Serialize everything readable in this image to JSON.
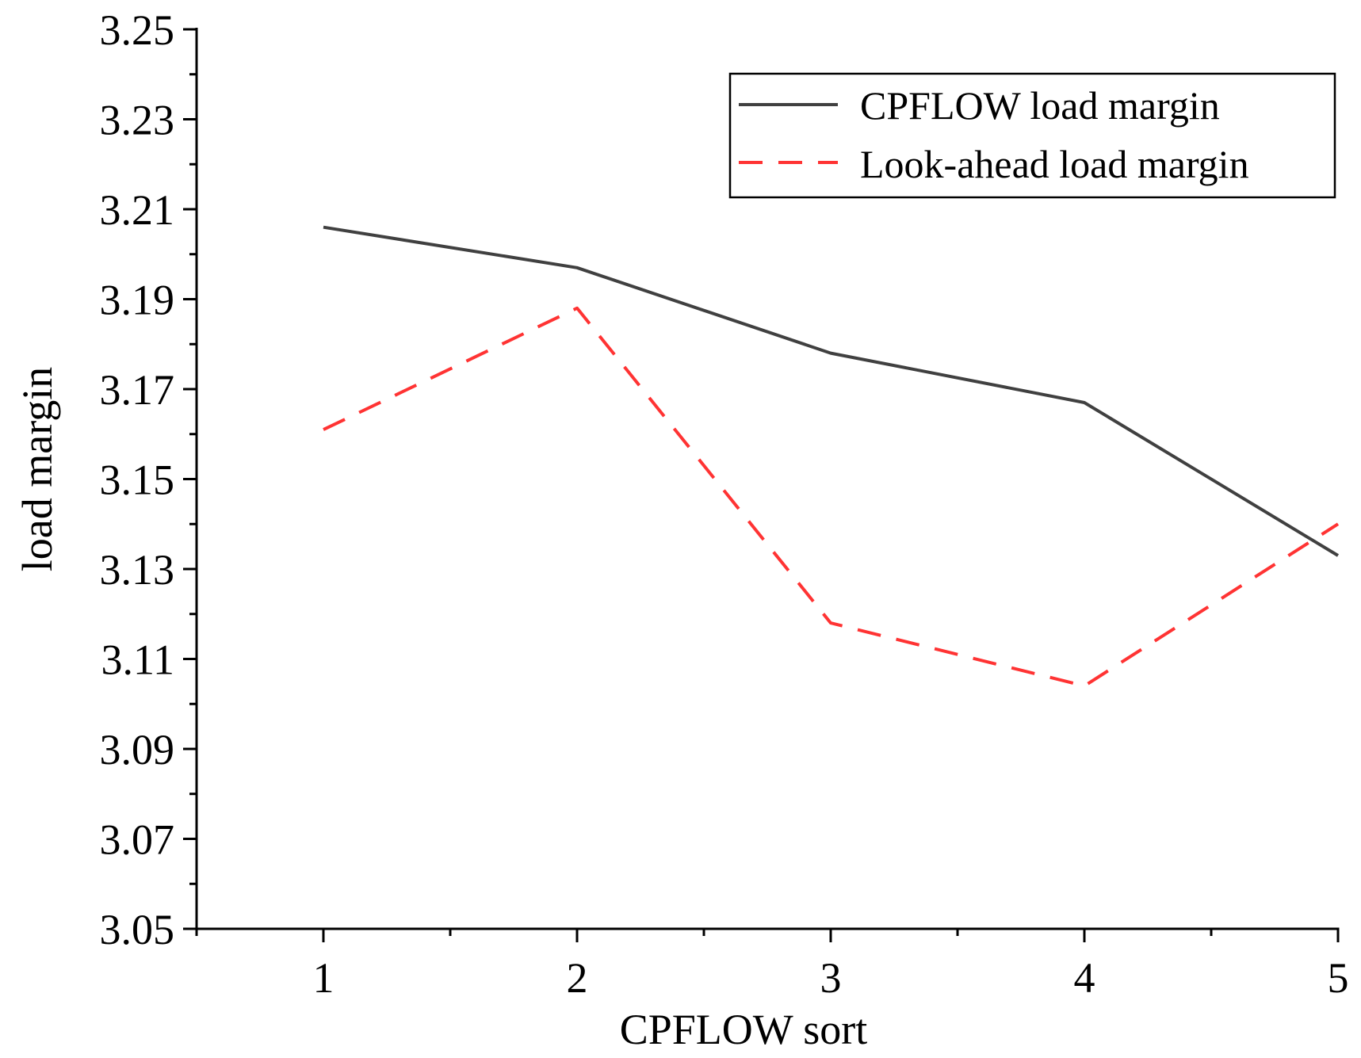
{
  "chart_data": {
    "type": "line",
    "title": "",
    "xlabel": "CPFLOW sort",
    "ylabel": "load margin",
    "x": [
      1,
      2,
      3,
      4,
      5
    ],
    "xlim": [
      0.5,
      5
    ],
    "ylim": [
      3.05,
      3.25
    ],
    "xticks": [
      1,
      2,
      3,
      4,
      5
    ],
    "xtick_labels": [
      "1",
      "2",
      "3",
      "4",
      "5"
    ],
    "yticks": [
      3.05,
      3.07,
      3.09,
      3.11,
      3.13,
      3.15,
      3.17,
      3.19,
      3.21,
      3.23,
      3.25
    ],
    "ytick_labels": [
      "3.05",
      "3.07",
      "3.09",
      "3.11",
      "3.13",
      "3.15",
      "3.17",
      "3.19",
      "3.21",
      "3.23",
      "3.25"
    ],
    "grid": false,
    "legend_position": "top-right",
    "series": [
      {
        "name": "CPFLOW load margin",
        "values": [
          3.206,
          3.197,
          3.178,
          3.167,
          3.133
        ],
        "color": "#404040",
        "style": "solid"
      },
      {
        "name": "Look-ahead load margin",
        "values": [
          3.161,
          3.188,
          3.118,
          3.104,
          3.14
        ],
        "color": "#ff3333",
        "style": "dashed"
      }
    ]
  }
}
